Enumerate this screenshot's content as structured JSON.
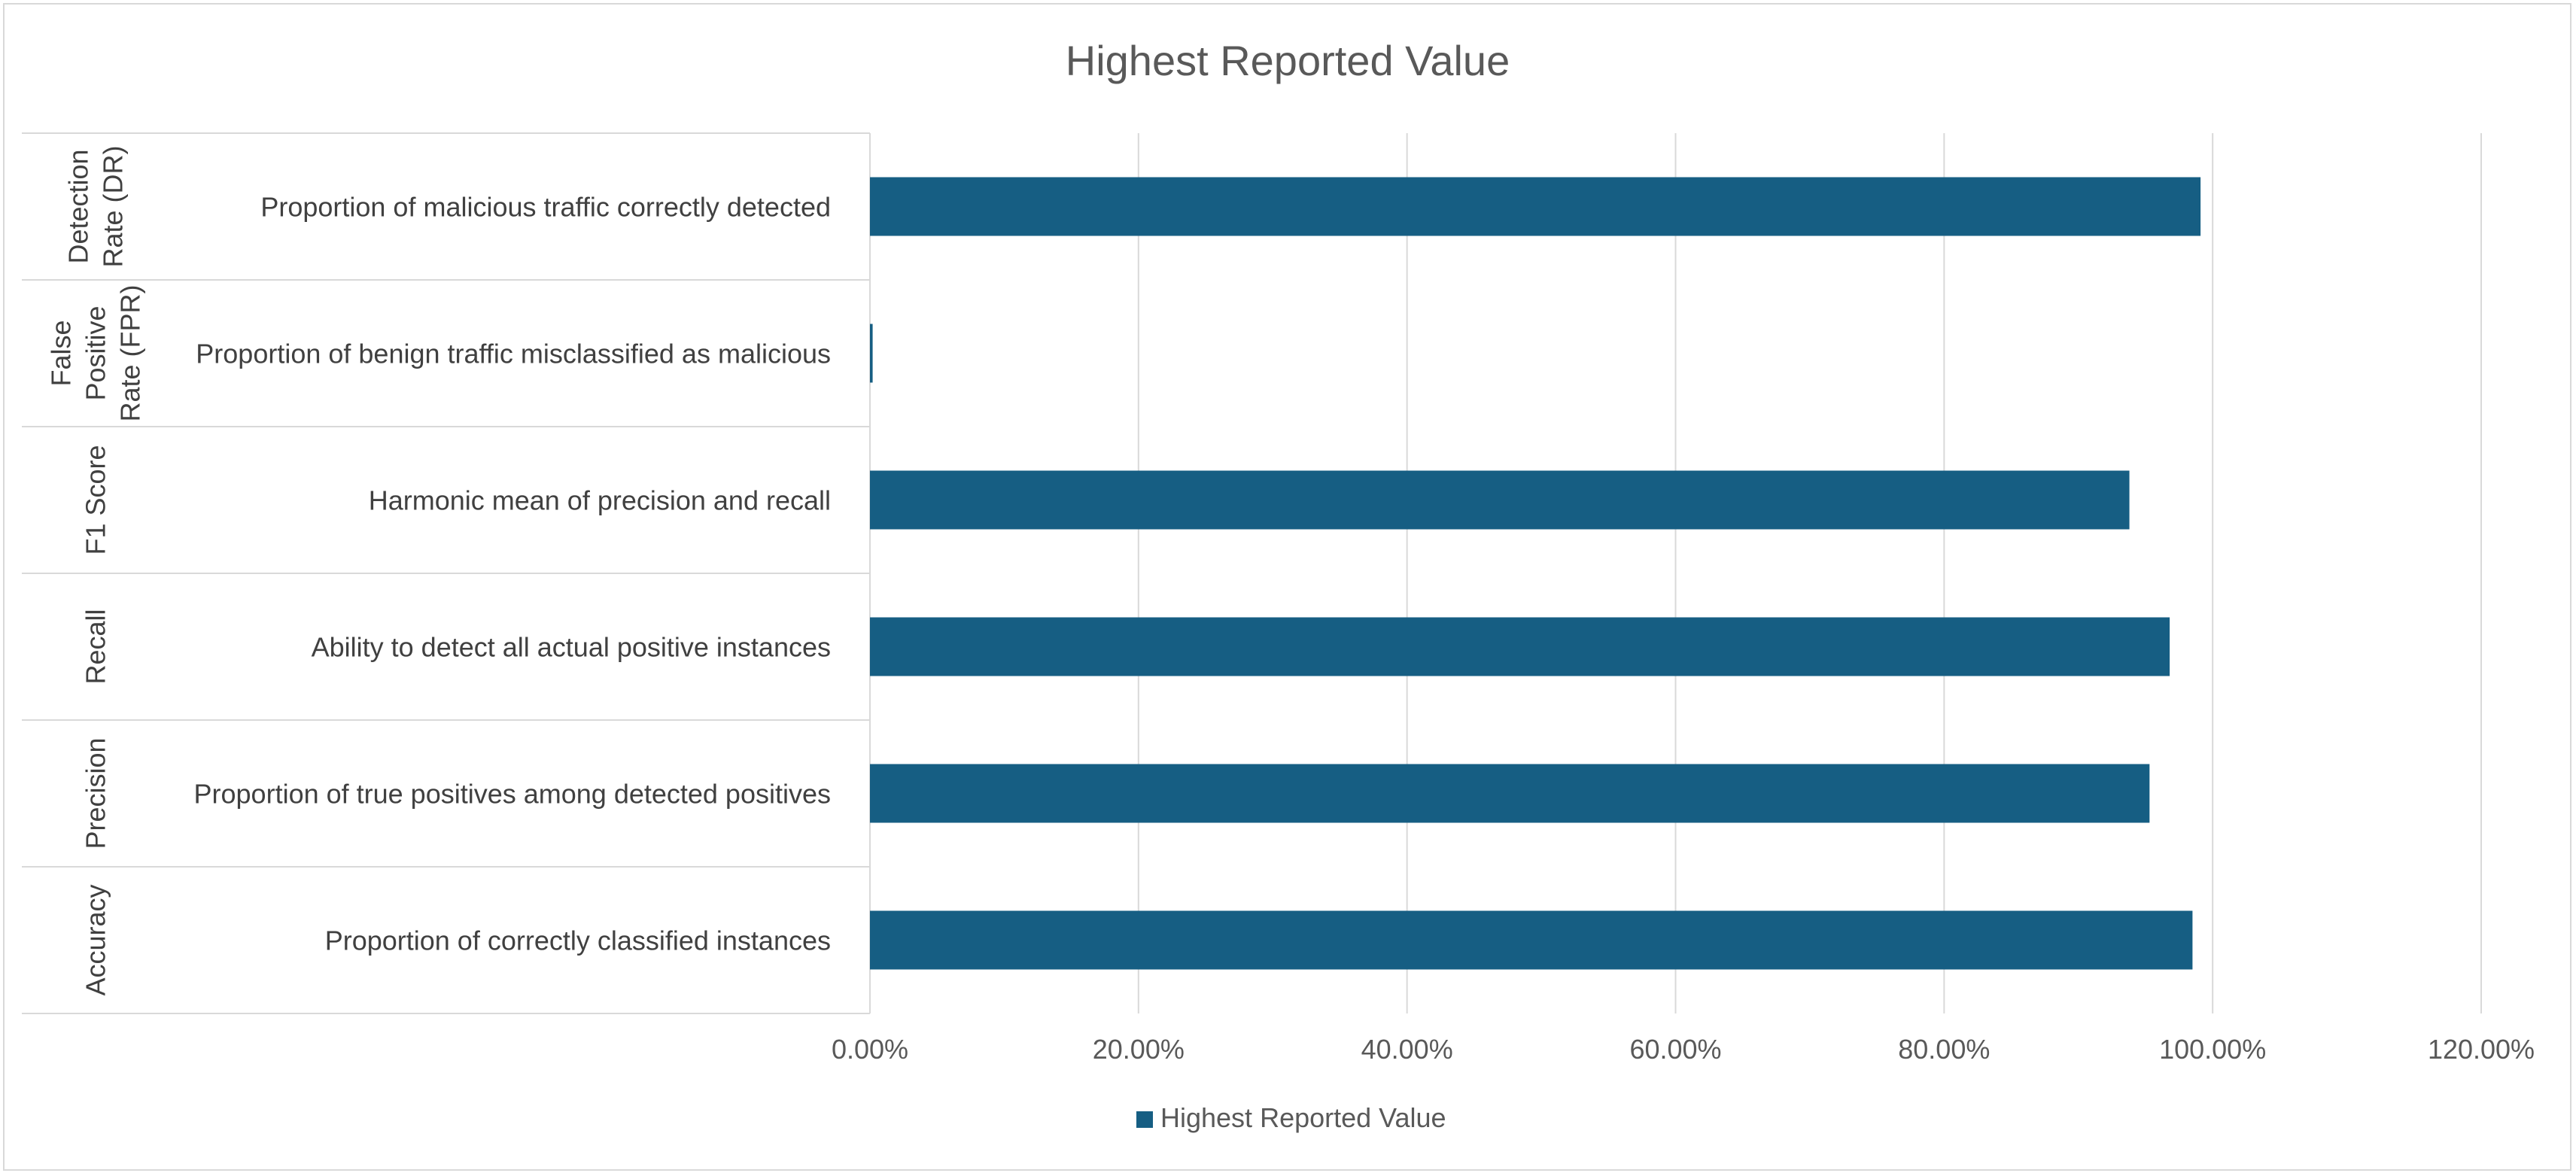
{
  "chart_data": {
    "type": "bar",
    "orientation": "horizontal",
    "title": "Highest Reported Value",
    "xlabel": "",
    "ylabel": "",
    "xlim": [
      0,
      1.2
    ],
    "x_ticks": [
      0,
      0.2,
      0.4,
      0.6,
      0.8,
      1.0,
      1.2
    ],
    "x_tick_labels": [
      "0.00%",
      "20.00%",
      "40.00%",
      "60.00%",
      "80.00%",
      "100.00%",
      "120.00%"
    ],
    "grid": true,
    "legend_position": "bottom",
    "series": [
      {
        "name": "Highest Reported Value",
        "color": "#165e83",
        "values": [
          0.991,
          0.002,
          0.938,
          0.968,
          0.953,
          0.985
        ]
      }
    ],
    "categories": [
      {
        "group": "Detection Rate (DR)",
        "group_lines": [
          "Detection",
          "Rate (DR)"
        ],
        "label": "Proportion of malicious traffic correctly detected"
      },
      {
        "group": "False Positive Rate (FPR)",
        "group_lines": [
          "False",
          "Positive",
          "Rate (FPR)"
        ],
        "label": "Proportion of benign traffic misclassified as malicious"
      },
      {
        "group": "F1 Score",
        "group_lines": [
          "F1 Score"
        ],
        "label": "Harmonic mean of precision and recall"
      },
      {
        "group": "Recall",
        "group_lines": [
          "Recall"
        ],
        "label": "Ability to detect all actual positive instances"
      },
      {
        "group": "Precision",
        "group_lines": [
          "Precision"
        ],
        "label": "Proportion of true positives among detected positives"
      },
      {
        "group": "Accuracy",
        "group_lines": [
          "Accuracy"
        ],
        "label": "Proportion of correctly classified instances"
      }
    ]
  }
}
